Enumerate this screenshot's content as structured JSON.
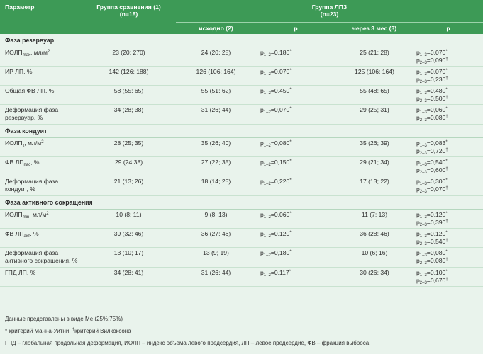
{
  "header": {
    "param": "Параметр",
    "compare_group": "Группа сравнения (1)",
    "compare_n": "(n=18)",
    "lpz_group": "Группа ЛПЗ",
    "lpz_n": "(n=23)",
    "baseline": "исходно (2)",
    "p": "p",
    "after3": "через 3 мес (3)"
  },
  "sections": [
    {
      "title": "Фаза резервуар",
      "rows": [
        {
          "name": [
            "ИОЛП",
            "max",
            ", мл/м",
            "2",
            ""
          ],
          "g1": "23 (20; 270)",
          "g2": "24 (20; 28)",
          "p12": [
            "1–2",
            "=0,180",
            "*"
          ],
          "g3": "25 (21; 28)",
          "p13": [
            "1–3",
            "=0,070",
            "*"
          ],
          "p23": [
            "2–3",
            "=0,090",
            "†"
          ]
        },
        {
          "name": [
            "ИР ЛП, %"
          ],
          "g1": "142 (126; 188)",
          "g2": "126 (106; 164)",
          "p12": [
            "1–2",
            "=0,070",
            "*"
          ],
          "g3": "125 (106; 164)",
          "p13": [
            "1–3",
            "=0,070",
            "*"
          ],
          "p23": [
            "2–3",
            "=0,230",
            "†"
          ]
        },
        {
          "name": [
            "Общая ФВ ЛП, %"
          ],
          "g1": "58 (55; 65)",
          "g2": "55 (51; 62)",
          "p12": [
            "1–2",
            "=0,450",
            "*"
          ],
          "g3": "55 (48; 65)",
          "p13": [
            "1–3",
            "=0,480",
            "*"
          ],
          "p23": [
            "2–3",
            "=0,500",
            "†"
          ]
        },
        {
          "name": [
            "Деформация фаза резервуар, %"
          ],
          "g1": "34 (28; 38)",
          "g2": "31 (26; 44)",
          "p12": [
            "1–2",
            "=0,070",
            "*"
          ],
          "g3": "29 (25; 31)",
          "p13": [
            "1–3",
            "=0,060",
            "*"
          ],
          "p23": [
            "2–3",
            "=0,080",
            "†"
          ]
        }
      ]
    },
    {
      "title": "Фаза кондуит",
      "rows": [
        {
          "name": [
            "ИОЛП",
            "к",
            ", мл/м",
            "2",
            ""
          ],
          "g1": "28 (25; 35)",
          "g2": "35 (26; 40)",
          "p12": [
            "1–2",
            "=0,080",
            "*"
          ],
          "g3": "35 (26; 39)",
          "p13": [
            "1–3",
            "=0,083",
            "*"
          ],
          "p23": [
            "2–3",
            "=0,720",
            "†"
          ]
        },
        {
          "name": [
            "ФВ ЛП",
            "пас",
            ", %",
            "",
            ""
          ],
          "g1": "29 (24;38)",
          "g2": "27 (22; 35)",
          "p12": [
            "1–2",
            "=0,150",
            "*"
          ],
          "g3": "29 (21; 34)",
          "p13": [
            "1–3",
            "=0,540",
            "*"
          ],
          "p23": [
            "2–3",
            "=0,600",
            "†"
          ]
        },
        {
          "name": [
            "Деформация фаза кондуит, %"
          ],
          "g1": "21 (13; 26)",
          "g2": "18 (14; 25)",
          "p12": [
            "1–2",
            "=0,220",
            "*"
          ],
          "g3": "17 (13; 22)",
          "p13": [
            "1–3",
            "=0,300",
            "*"
          ],
          "p23": [
            "2–3",
            "=0,070",
            "†"
          ]
        }
      ]
    },
    {
      "title": "Фаза активного сокращения",
      "rows": [
        {
          "name": [
            "ИОЛП",
            "min",
            ", мл/м",
            "2",
            ""
          ],
          "g1": "10 (8; 11)",
          "g2": "9 (8; 13)",
          "p12": [
            "1–2",
            "=0,060",
            "*"
          ],
          "g3": "11 (7; 13)",
          "p13": [
            "1–3",
            "=0,120",
            "*"
          ],
          "p23": [
            "2–3",
            "=0,390",
            "†"
          ]
        },
        {
          "name": [
            "ФВ ЛП",
            "акт",
            ", %",
            "",
            ""
          ],
          "g1": "39 (32; 46)",
          "g2": "36 (27; 46)",
          "p12": [
            "1–2",
            "=0,120",
            "*"
          ],
          "g3": "36 (28; 46)",
          "p13": [
            "1–3",
            "=0,120",
            "*"
          ],
          "p23": [
            "2–3",
            "=0,540",
            "†"
          ]
        },
        {
          "name": [
            "Деформация фаза активного сокращения, %"
          ],
          "g1": "13 (10; 17)",
          "g2": "13 (9; 19)",
          "p12": [
            "1–2",
            "=0,180",
            "*"
          ],
          "g3": "10 (6; 16)",
          "p13": [
            "1–3",
            "=0,080",
            "*"
          ],
          "p23": [
            "2–3",
            "=0,080",
            "†"
          ]
        },
        {
          "name": [
            "ГПД ЛП, %"
          ],
          "g1": "34 (28; 41)",
          "g2": "31 (26; 44)",
          "p12": [
            "1–2",
            "=0,117",
            "*"
          ],
          "g3": "30 (26; 34)",
          "p13": [
            "1–3",
            "=0,100",
            "*"
          ],
          "p23": [
            "2–3",
            "=0,670",
            "†"
          ]
        }
      ]
    }
  ],
  "notes": {
    "line1": "Данные представлены в виде Ме (25%;75%)",
    "line2_star": "* критерий Манна-Уитни, ",
    "line2_dagger": "†",
    "line2_rest": "критерий Вилкоксона",
    "line3": "ГПД – глобальная продольная деформация, ИОЛП – индекс объема левого предсердия, ЛП – левое предсердие, ФВ – фракция выброса"
  },
  "colors": {
    "header_bg": "#3d9a56",
    "body_bg": "#e9f3ec"
  }
}
